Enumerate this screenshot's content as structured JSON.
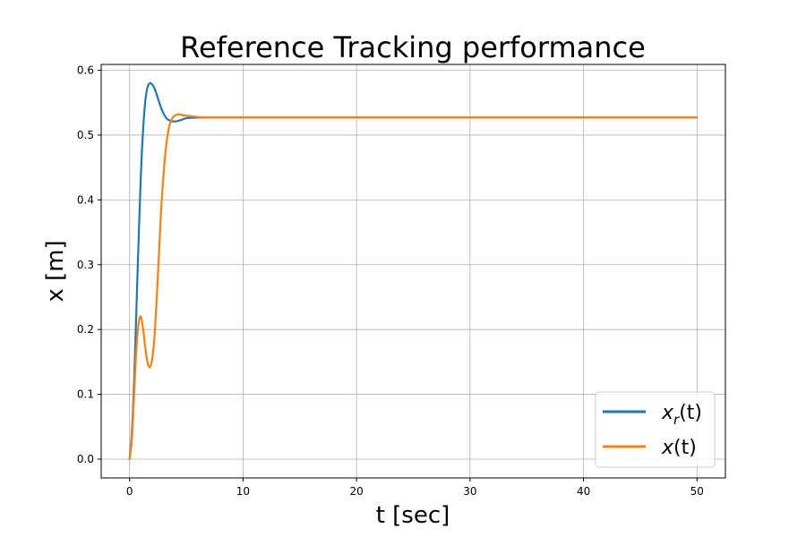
{
  "chart_data": {
    "type": "line",
    "title": "Reference Tracking performance",
    "xlabel": "t [sec]",
    "ylabel": "x [m]",
    "xlim": [
      -2.5,
      52.5
    ],
    "ylim": [
      -0.029,
      0.609
    ],
    "xticks": [
      0,
      10,
      20,
      30,
      40,
      50
    ],
    "yticks": [
      0.0,
      0.1,
      0.2,
      0.3,
      0.4,
      0.5,
      0.6
    ],
    "xtick_labels": [
      "0",
      "10",
      "20",
      "30",
      "40",
      "50"
    ],
    "ytick_labels": [
      "0.0",
      "0.1",
      "0.2",
      "0.3",
      "0.4",
      "0.5",
      "0.6"
    ],
    "grid": true,
    "legend_position": "lower-right",
    "series": [
      {
        "name": "x_r(t)",
        "color": "#1f77b4",
        "x": [
          0,
          0.2,
          0.4,
          0.6,
          0.8,
          1.0,
          1.2,
          1.4,
          1.6,
          1.8,
          2.0,
          2.2,
          2.4,
          2.6,
          2.8,
          3.0,
          3.3,
          3.6,
          4.0,
          4.5,
          5.0,
          6.0,
          7.0,
          8.0,
          10,
          15,
          20,
          30,
          40,
          50
        ],
        "y": [
          0.0,
          0.04,
          0.12,
          0.23,
          0.34,
          0.44,
          0.51,
          0.555,
          0.575,
          0.58,
          0.578,
          0.572,
          0.562,
          0.551,
          0.541,
          0.533,
          0.525,
          0.522,
          0.521,
          0.523,
          0.526,
          0.527,
          0.527,
          0.527,
          0.527,
          0.527,
          0.527,
          0.527,
          0.527,
          0.527
        ]
      },
      {
        "name": "x(t)",
        "color": "#ff7f0e",
        "x": [
          0,
          0.2,
          0.4,
          0.6,
          0.8,
          1.0,
          1.2,
          1.4,
          1.6,
          1.8,
          2.0,
          2.2,
          2.4,
          2.6,
          2.8,
          3.0,
          3.2,
          3.4,
          3.6,
          3.8,
          4.0,
          4.3,
          4.6,
          5.0,
          5.5,
          6.0,
          7.0,
          8.0,
          10,
          15,
          20,
          30,
          40,
          50
        ],
        "y": [
          0.0,
          0.03,
          0.1,
          0.17,
          0.21,
          0.22,
          0.2,
          0.17,
          0.148,
          0.142,
          0.155,
          0.19,
          0.25,
          0.32,
          0.39,
          0.44,
          0.48,
          0.505,
          0.52,
          0.527,
          0.53,
          0.532,
          0.531,
          0.53,
          0.529,
          0.528,
          0.527,
          0.527,
          0.527,
          0.527,
          0.527,
          0.527,
          0.527,
          0.527
        ]
      }
    ]
  },
  "legend": {
    "items": [
      {
        "base": "x",
        "sub": "r",
        "suffix": "(t)",
        "color": "#1f77b4"
      },
      {
        "base": "x",
        "sub": "",
        "suffix": "(t)",
        "color": "#ff7f0e"
      }
    ]
  }
}
